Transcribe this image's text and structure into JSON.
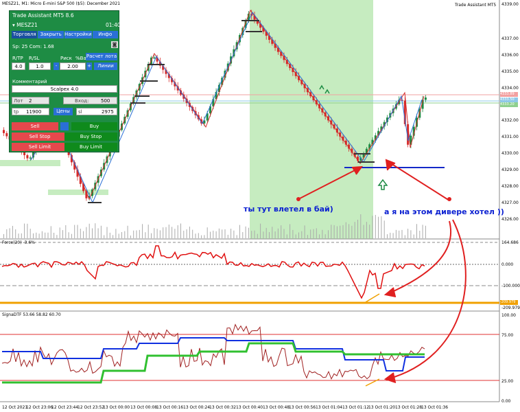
{
  "header": {
    "symbol_line": "MESZ21, M1:  Micro E-mini S&P 500 ($5): December 2021",
    "assistant_name": "Trade Assistant MT5"
  },
  "price_axis": [
    "4339.00",
    "4337.00",
    "4336.00",
    "4335.00",
    "4334.00",
    "4333.00",
    "4332.00",
    "4331.00",
    "4330.00",
    "4329.00",
    "4328.00",
    "4327.00",
    "4326.00"
  ],
  "price_tags": [
    "4333.89",
    "4333.50",
    "4333.20"
  ],
  "force": {
    "label": "Force(20) -3.6%",
    "axis": [
      "164.686",
      "0.000",
      "-100.000"
    ],
    "tag": "-209.979",
    "tag2": "-209.979"
  },
  "signa": {
    "label": "SignaDTF 53.66 58.82 60.70",
    "axis": [
      "100.00",
      "75.00",
      "25.00",
      "0.00"
    ]
  },
  "time_axis": [
    "12 Oct 2021",
    "12 Oct 23:06",
    "12 Oct 23:44",
    "12 Oct 23:52",
    "13 Oct 00:00",
    "13 Oct 00:08",
    "13 Oct 00:16",
    "13 Oct 00:24",
    "13 Oct 00:32",
    "13 Oct 00:40",
    "13 Oct 00:48",
    "13 Oct 00:56",
    "13 Oct 01:04",
    "13 Oct 01:12",
    "13 Oct 01:20",
    "13 Oct 01:28",
    "13 Oct 01:36"
  ],
  "panel": {
    "title": "Trade Assistant MT5 8.6",
    "symbol": "MESZ21",
    "time": "01:40",
    "tabs": [
      "Торговля",
      "Закрыть",
      "Настройки",
      "Инфо"
    ],
    "spread_line": "Sp: 25  Com: 1.68",
    "rtp_label": "R/TP",
    "rsl_label": "R/SL",
    "risk_label": "Риск",
    "pct_label": "%Ba",
    "calc_button": "Расчет лота",
    "lines_button": "Линии",
    "rtp_value": "4.0",
    "rsl_value": "1.0",
    "risk_minus": "-",
    "risk_value": "2.00",
    "risk_plus": "+",
    "comment_label": "Комментарий",
    "comment_value": "Scalpex 4.0",
    "lot_label": "Лот",
    "lot_value": "2",
    "entry_label": "Вход:",
    "entry_value": "500",
    "tp_label": "tp",
    "tp_value": "11900",
    "prices_button": "Цены",
    "sl_label": "sl",
    "sl_value": "2975",
    "sell": "Sell",
    "buy": "Buy",
    "sell_stop": "Sell Stop",
    "buy_stop": "Buy Stop",
    "sell_limit": "Sell Limit",
    "buy_limit": "Buy Limit"
  },
  "annotations": {
    "left": "ты тут влетел в бай)",
    "right": "а я на этом дивере хотел ))"
  },
  "colors": {
    "bull": "#1e8c44",
    "bear": "#d52a2a",
    "zone": "#c6ecc0",
    "annotation": "#0a1fd1",
    "arrow": "#e02020",
    "hline": "#1428c8"
  }
}
